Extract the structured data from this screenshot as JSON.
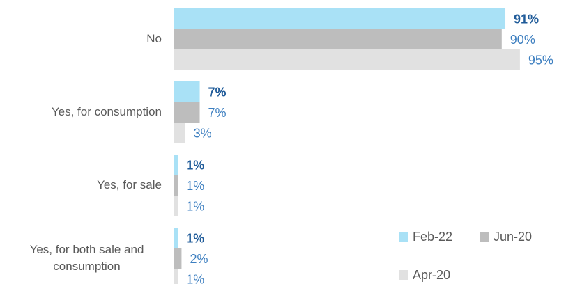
{
  "chart_data": {
    "type": "bar",
    "orientation": "horizontal",
    "categories": [
      "No",
      "Yes, for consumption",
      "Yes, for sale",
      "Yes, for both sale and consumption"
    ],
    "series": [
      {
        "name": "Feb-22",
        "color": "#a9e1f6",
        "values": [
          91,
          7,
          1,
          1
        ],
        "value_labels": [
          "91%",
          "7%",
          "1%",
          "1%"
        ]
      },
      {
        "name": "Jun-20",
        "color": "#bdbdbd",
        "values": [
          90,
          7,
          1,
          2
        ],
        "value_labels": [
          "90%",
          "7%",
          "1%",
          "2%"
        ]
      },
      {
        "name": "Apr-20",
        "color": "#e1e1e1",
        "values": [
          95,
          3,
          1,
          1
        ],
        "value_labels": [
          "95%",
          "3%",
          "1%",
          "1%"
        ]
      }
    ],
    "xlim": [
      0,
      100
    ],
    "legend": "bottom-right"
  }
}
